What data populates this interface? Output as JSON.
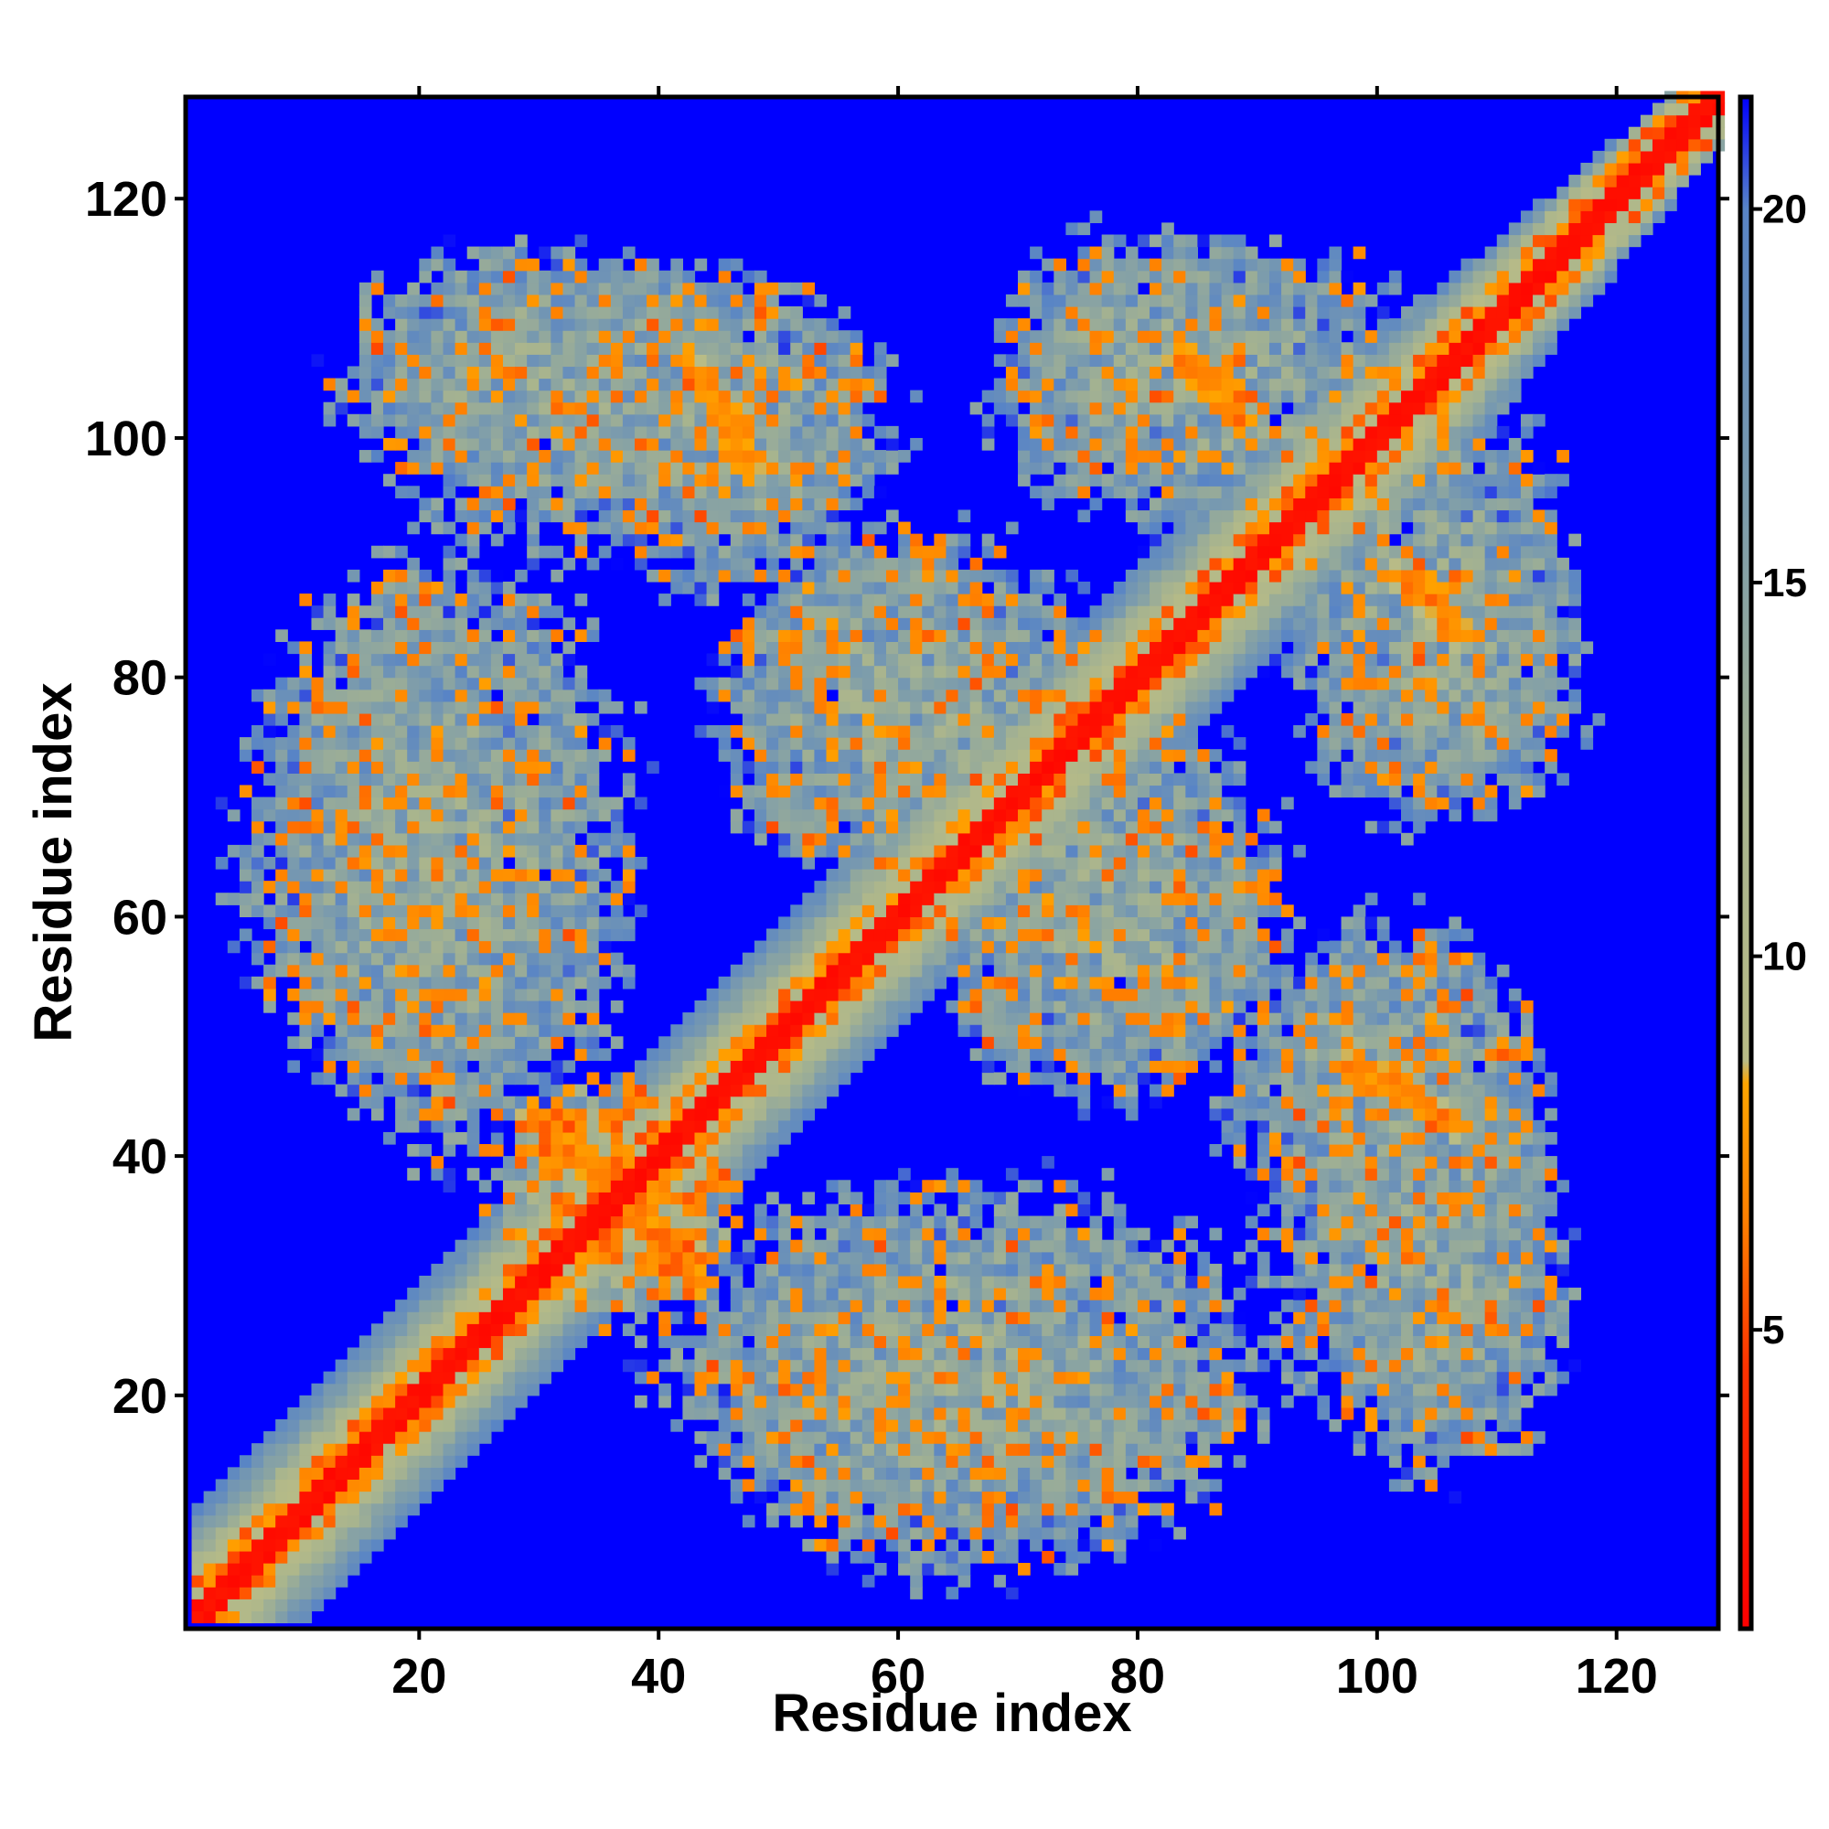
{
  "chart_data": {
    "type": "heatmap",
    "title": "",
    "xlabel": "Residue index",
    "ylabel": "Residue index",
    "x_range": [
      1,
      128
    ],
    "y_range": [
      1,
      128
    ],
    "x_ticks": [
      20,
      40,
      60,
      80,
      100,
      120
    ],
    "y_ticks": [
      20,
      40,
      60,
      80,
      100,
      120
    ],
    "colorbar": {
      "range": [
        1,
        21.5
      ],
      "ticks": [
        5,
        10,
        15,
        20
      ],
      "stops": [
        {
          "value": 1,
          "color": "#ff0000"
        },
        {
          "value": 4.5,
          "color": "#ff3300"
        },
        {
          "value": 6.5,
          "color": "#ff8000"
        },
        {
          "value": 8.3,
          "color": "#ffa500"
        },
        {
          "value": 8.6,
          "color": "#b9bc86"
        },
        {
          "value": 12,
          "color": "#a8b48e"
        },
        {
          "value": 16,
          "color": "#7c9cac"
        },
        {
          "value": 20,
          "color": "#5884c6"
        },
        {
          "value": 21.5,
          "color": "#0000ff"
        }
      ]
    },
    "cutoff_value": 21.5,
    "diagonal_band": {
      "core_width": 1.5,
      "orange_width": 3.5,
      "halo_width": 9,
      "halo_end_width": 4
    },
    "off_diagonal_regions": [
      {
        "name": "A",
        "x": [
          4,
          33
        ],
        "y": [
          42,
          88
        ],
        "mean": 14,
        "dense": 0.12
      },
      {
        "name": "B",
        "x": [
          27,
          45
        ],
        "y": [
          25,
          46
        ],
        "mean": 12,
        "dense": 0.25
      },
      {
        "name": "C",
        "x": [
          38,
          93
        ],
        "y": [
          8,
          38
        ],
        "mean": 14,
        "dense": 0.08
      },
      {
        "name": "D",
        "x": [
          13,
          60
        ],
        "y": [
          90,
          115
        ],
        "mean": 14,
        "dense": 0.12
      },
      {
        "name": "E",
        "x": [
          43,
          80
        ],
        "y": [
          60,
          92
        ],
        "mean": 14,
        "dense": 0.1
      },
      {
        "name": "F",
        "x": [
          65,
          93
        ],
        "y": [
          44,
          68
        ],
        "mean": 14,
        "dense": 0.12
      },
      {
        "name": "G",
        "x": [
          67,
          105
        ],
        "y": [
          90,
          117
        ],
        "mean": 14,
        "dense": 0.1
      },
      {
        "name": "H",
        "x": [
          94,
          118
        ],
        "y": [
          68,
          92
        ],
        "mean": 14,
        "dense": 0.12
      },
      {
        "name": "I",
        "x": [
          85,
          113
        ],
        "y": [
          33,
          59
        ],
        "mean": 14,
        "dense": 0.1
      },
      {
        "name": "J",
        "x": [
          96,
          116
        ],
        "y": [
          12,
          44
        ],
        "mean": 14,
        "dense": 0.08
      }
    ],
    "contact_streaks": [
      {
        "x1": 43,
        "y1": 105,
        "x2": 47,
        "y2": 97
      },
      {
        "x1": 31,
        "y1": 43,
        "x2": 35,
        "y2": 37
      },
      {
        "x1": 37,
        "y1": 35,
        "x2": 43,
        "y2": 29
      },
      {
        "x1": 100,
        "y1": 46,
        "x2": 106,
        "y2": 42
      },
      {
        "x1": 83,
        "y1": 106,
        "x2": 88,
        "y2": 103
      },
      {
        "x1": 101,
        "y1": 88,
        "x2": 106,
        "y2": 84
      }
    ]
  }
}
